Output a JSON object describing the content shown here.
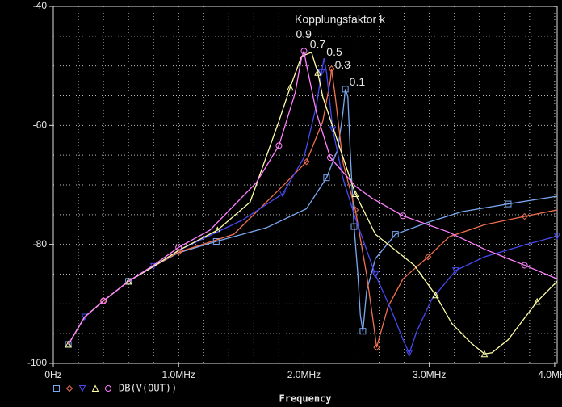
{
  "chart_data": {
    "type": "line",
    "annotation": "Kopplungsfaktor k",
    "x_label": "Frequency",
    "legend_label": "DB(V(OUT))",
    "xlim": [
      0,
      4.02
    ],
    "ylim": [
      -100,
      -40
    ],
    "xticks": [
      {
        "value": 0,
        "label": "0Hz"
      },
      {
        "value": 1,
        "label": "1.0MHz"
      },
      {
        "value": 2,
        "label": "2.0MHz"
      },
      {
        "value": 3,
        "label": "3.0MHz"
      },
      {
        "value": 4,
        "label": "4.0MHz"
      }
    ],
    "yticks": [
      -40,
      -60,
      -80,
      -100
    ],
    "xgrid": [
      0.2,
      0.4,
      0.6,
      0.8,
      1.0,
      1.2,
      1.4,
      1.6,
      1.8,
      2.0,
      2.2,
      2.4,
      2.6,
      2.8,
      3.0,
      3.2,
      3.4,
      3.6,
      3.8,
      4.0
    ],
    "ygrid": [
      -45,
      -50,
      -55,
      -60,
      -65,
      -70,
      -75,
      -80,
      -85,
      -90,
      -95
    ],
    "grid": true,
    "series": [
      {
        "name": "0.1",
        "color": "#7aa8f0",
        "marker": "square",
        "x": [
          0.12,
          0.25,
          0.4,
          0.6,
          0.8,
          1.0,
          1.3,
          1.7,
          2.02,
          2.18,
          2.27,
          2.31,
          2.33,
          2.35,
          2.37,
          2.4,
          2.43,
          2.45,
          2.47,
          2.5,
          2.57,
          2.73,
          2.99,
          3.26,
          3.63,
          4.02
        ],
        "values": [
          -96.8,
          -92.2,
          -89.5,
          -86.2,
          -83.7,
          -81.4,
          -79.5,
          -77.2,
          -74,
          -68.8,
          -64,
          -58,
          -53.9,
          -55.2,
          -64.7,
          -77,
          -85.1,
          -91.9,
          -94.6,
          -87.8,
          -82.4,
          -78.3,
          -76.3,
          -74.5,
          -73.2,
          -71.9
        ]
      },
      {
        "name": "0.3",
        "color": "#f07050",
        "marker": "diamond",
        "x": [
          0.12,
          0.25,
          0.4,
          0.6,
          0.8,
          1.0,
          1.44,
          1.83,
          2.02,
          2.15,
          2.21,
          2.22,
          2.25,
          2.31,
          2.41,
          2.5,
          2.55,
          2.58,
          2.67,
          2.79,
          2.99,
          3.16,
          3.44,
          3.76,
          4.02
        ],
        "values": [
          -96.8,
          -92.2,
          -89.5,
          -86.2,
          -83.7,
          -81.3,
          -78.3,
          -70.2,
          -66.1,
          -59.3,
          -52.5,
          -50.5,
          -55.2,
          -66.1,
          -74.2,
          -85.1,
          -92.6,
          -97.3,
          -90.5,
          -85.8,
          -82.1,
          -78.7,
          -76.7,
          -75.3,
          -74.2
        ]
      },
      {
        "name": "0.5",
        "color": "#4848f0",
        "marker": "triangle-down",
        "x": [
          0.12,
          0.25,
          0.4,
          0.6,
          0.8,
          1.0,
          1.51,
          1.83,
          2.0,
          2.1,
          2.14,
          2.16,
          2.18,
          2.23,
          2.31,
          2.41,
          2.57,
          2.7,
          2.79,
          2.84,
          2.9,
          3.02,
          3.21,
          3.44,
          3.76,
          4.02
        ],
        "values": [
          -96.8,
          -92.2,
          -89.5,
          -86.2,
          -83.7,
          -81,
          -75.9,
          -71.5,
          -65.4,
          -56.6,
          -51.1,
          -48.7,
          -51.1,
          -60.7,
          -68.8,
          -75.6,
          -85.1,
          -91.2,
          -96,
          -98.3,
          -94.6,
          -89.2,
          -84.4,
          -82.1,
          -80.1,
          -78.6
        ]
      },
      {
        "name": "0.7",
        "color": "#ffffa8",
        "marker": "triangle",
        "x": [
          0.12,
          0.25,
          0.4,
          0.6,
          0.8,
          1.0,
          1.31,
          1.57,
          1.8,
          1.89,
          1.98,
          2.06,
          2.11,
          2.15,
          2.28,
          2.41,
          2.57,
          2.88,
          3.05,
          3.18,
          3.34,
          3.44,
          3.5,
          3.63,
          3.86,
          4.02
        ],
        "values": [
          -96.8,
          -92.2,
          -89.5,
          -86.2,
          -83.7,
          -81,
          -77.6,
          -72.9,
          -59.3,
          -53.6,
          -48.4,
          -47.7,
          -51.1,
          -55.2,
          -63.4,
          -71.5,
          -78.3,
          -83.5,
          -88.5,
          -93.3,
          -96.7,
          -98.4,
          -98.2,
          -96,
          -89.6,
          -86.2
        ]
      },
      {
        "name": "0.9",
        "color": "#ff80ff",
        "marker": "circle",
        "x": [
          0.12,
          0.25,
          0.4,
          0.6,
          0.8,
          1.0,
          1.25,
          1.62,
          1.8,
          1.93,
          1.98,
          2.0,
          2.02,
          2.1,
          2.21,
          2.41,
          2.54,
          2.79,
          3.15,
          3.44,
          3.76,
          4.02
        ],
        "values": [
          -96.8,
          -92.2,
          -89.5,
          -86.2,
          -83.5,
          -80.5,
          -77.6,
          -69.6,
          -63.4,
          -54.5,
          -48.7,
          -47.5,
          -49.8,
          -57.9,
          -65.4,
          -70.2,
          -72.2,
          -75.2,
          -77.9,
          -80.8,
          -83.5,
          -85.8
        ]
      }
    ]
  }
}
